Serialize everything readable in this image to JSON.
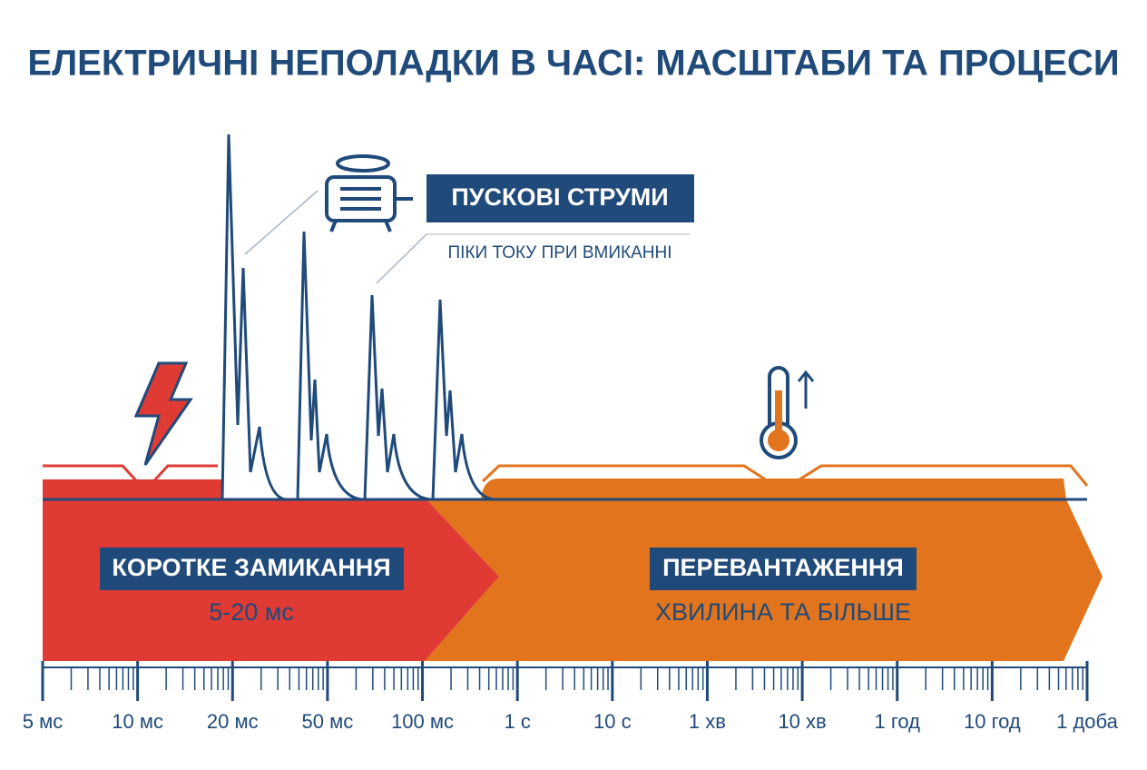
{
  "title": "ЕЛЕКТРИЧНІ НЕПОЛАДКИ В ЧАСІ: МАСШТАБИ ТА ПРОЦЕСИ",
  "inrush": {
    "label": "ПУСКОВІ СТРУМИ",
    "caption": "ПІКИ ТОКУ ПРИ ВМИКАННІ"
  },
  "short_circuit": {
    "label": "КОРОТКЕ ЗАМИКАННЯ",
    "duration": "5-20 мс"
  },
  "overload": {
    "label": "ПЕРЕВАНТАЖЕННЯ",
    "duration": "ХВИЛИНА ТА БІЛЬШЕ"
  },
  "timeline": {
    "ticks": [
      "5 мс",
      "10 мс",
      "20 мс",
      "50 мс",
      "100 мс",
      "1 с",
      "10 с",
      "1 хв",
      "10 хв",
      "1 год",
      "10 год",
      "1 доба"
    ]
  }
}
